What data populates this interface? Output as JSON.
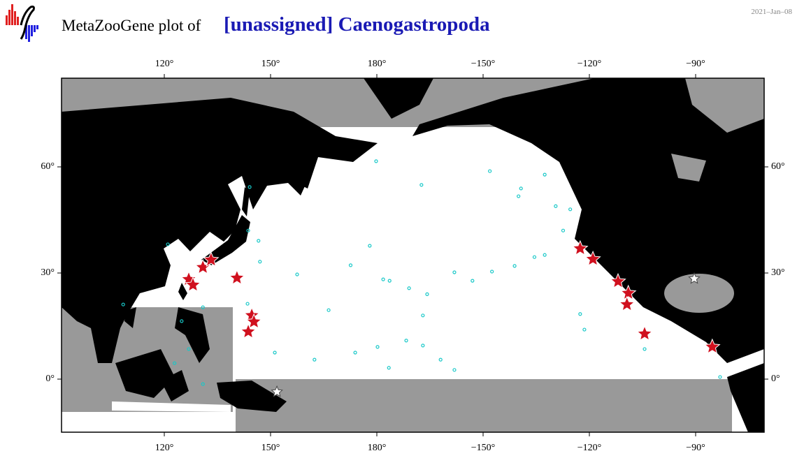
{
  "header": {
    "title_prefix": "MetaZooGene plot of",
    "title_taxon": "[unassigned] Caenogastropoda",
    "date": "2021–Jan–08"
  },
  "map": {
    "lon_ticks": [
      {
        "value": 120,
        "label": "120°"
      },
      {
        "value": 150,
        "label": "150°"
      },
      {
        "value": 180,
        "label": "180°"
      },
      {
        "value": -150,
        "label": "−150°"
      },
      {
        "value": -120,
        "label": "−120°"
      },
      {
        "value": -90,
        "label": "−90°"
      }
    ],
    "lat_ticks": [
      {
        "value": 0,
        "label": "0°"
      },
      {
        "value": 30,
        "label": "30°"
      },
      {
        "value": 60,
        "label": "60°"
      }
    ],
    "stars_red": [
      [
        126.9,
        28.2
      ],
      [
        128.1,
        26.6
      ],
      [
        130.9,
        31.6
      ],
      [
        133.2,
        33.7
      ],
      [
        140.5,
        28.6
      ],
      [
        144.7,
        18.0
      ],
      [
        145.3,
        16.2
      ],
      [
        143.7,
        13.4
      ],
      [
        -122.6,
        36.9
      ],
      [
        -119.0,
        33.9
      ],
      [
        -111.9,
        27.6
      ],
      [
        -109.0,
        24.3
      ],
      [
        -109.4,
        21.1
      ],
      [
        -104.4,
        12.8
      ],
      [
        -85.3,
        9.1
      ]
    ],
    "stars_white": [
      [
        -90.4,
        28.4
      ],
      [
        151.8,
        -3.6
      ]
    ],
    "stations": [
      [
        178.0,
        37.7
      ],
      [
        172.6,
        32.2
      ],
      [
        157.5,
        29.6
      ],
      [
        -178.2,
        28.2
      ],
      [
        -176.4,
        27.8
      ],
      [
        -170.9,
        25.7
      ],
      [
        -165.8,
        24.0
      ],
      [
        -158.1,
        30.2
      ],
      [
        -153.0,
        27.8
      ],
      [
        -147.5,
        30.4
      ],
      [
        -141.1,
        32.0
      ],
      [
        -135.5,
        34.5
      ],
      [
        -132.6,
        35.1
      ],
      [
        -140.0,
        51.7
      ],
      [
        -139.3,
        53.9
      ],
      [
        -167.4,
        54.9
      ],
      [
        179.8,
        61.6
      ],
      [
        -129.5,
        48.9
      ],
      [
        -127.4,
        42.0
      ],
      [
        -125.4,
        48.0
      ],
      [
        -122.6,
        18.4
      ],
      [
        -121.4,
        14.0
      ],
      [
        -167.0,
        18.0
      ],
      [
        -171.7,
        10.9
      ],
      [
        -179.8,
        9.1
      ],
      [
        -176.6,
        3.2
      ],
      [
        173.9,
        7.5
      ],
      [
        162.4,
        5.5
      ],
      [
        151.2,
        7.5
      ],
      [
        166.4,
        19.5
      ],
      [
        -167.0,
        9.5
      ],
      [
        -162.0,
        5.5
      ],
      [
        -158.1,
        2.6
      ],
      [
        -104.4,
        8.5
      ],
      [
        -83.1,
        0.6
      ],
      [
        144.1,
        54.3
      ],
      [
        143.7,
        42.0
      ],
      [
        146.6,
        39.1
      ],
      [
        147.0,
        33.2
      ],
      [
        143.5,
        21.3
      ],
      [
        130.9,
        20.3
      ],
      [
        124.9,
        16.4
      ],
      [
        126.9,
        8.5
      ],
      [
        122.9,
        4.5
      ],
      [
        130.9,
        -1.4
      ],
      [
        108.4,
        21.1
      ],
      [
        121.0,
        38.1
      ],
      [
        -148.1,
        58.8
      ],
      [
        -132.6,
        57.8
      ]
    ]
  }
}
